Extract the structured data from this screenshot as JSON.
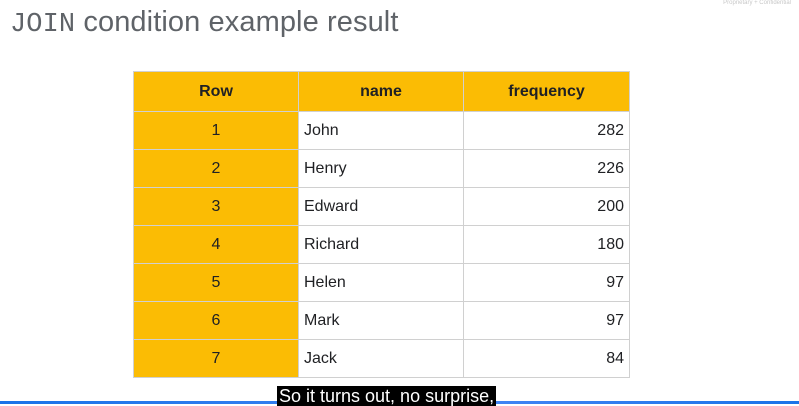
{
  "slide": {
    "title_code": "JOIN",
    "title_rest": " condition example result",
    "confidential": "Proprietary + Confidential"
  },
  "table": {
    "headers": [
      "Row",
      "name",
      "frequency"
    ],
    "rows": [
      {
        "row": "1",
        "name": "John",
        "frequency": "282"
      },
      {
        "row": "2",
        "name": "Henry",
        "frequency": "226"
      },
      {
        "row": "3",
        "name": "Edward",
        "frequency": "200"
      },
      {
        "row": "4",
        "name": "Richard",
        "frequency": "180"
      },
      {
        "row": "5",
        "name": "Helen",
        "frequency": "97"
      },
      {
        "row": "6",
        "name": "Mark",
        "frequency": "97"
      },
      {
        "row": "7",
        "name": "Jack",
        "frequency": "84"
      }
    ]
  },
  "caption": "So it turns out, no surprise,",
  "colors": {
    "header_fill": "#fbbc04",
    "title_text": "#5f6368",
    "accent_line": "#1a73e8"
  }
}
